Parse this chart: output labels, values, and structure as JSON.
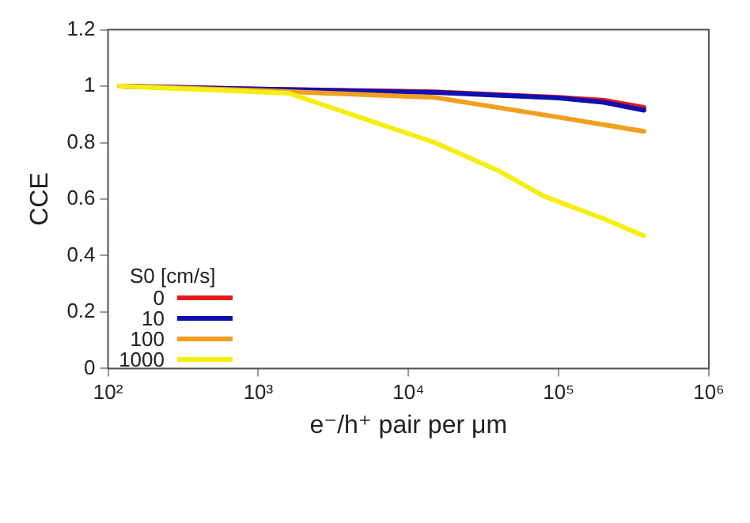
{
  "chart_data": {
    "type": "line",
    "xlabel": "e⁻/h⁺ pair per μm",
    "ylabel": "CCE",
    "legend_title": "S0 [cm/s]",
    "legend": "bottom left",
    "log": "x",
    "grid": false,
    "marker": "none",
    "line_style": "solid",
    "xlim": [
      100,
      1000000
    ],
    "xticks": [
      {
        "value": 100,
        "label": "10²"
      },
      {
        "value": 1000,
        "label": "10³"
      },
      {
        "value": 10000,
        "label": "10⁴"
      },
      {
        "value": 100000,
        "label": "10⁵"
      },
      {
        "value": 1000000,
        "label": "10⁶"
      }
    ],
    "ylim": [
      0,
      1.2
    ],
    "yticks": [
      0,
      0.2,
      0.4,
      0.6,
      0.8,
      1,
      1.2
    ],
    "series": [
      {
        "name": "0",
        "color": "#e41a1c",
        "x": [
          120,
          1000,
          15000,
          100000,
          200000,
          370000
        ],
        "values": [
          1,
          0.99,
          0.98,
          0.96,
          0.95,
          0.925
        ]
      },
      {
        "name": "10",
        "color": "#1010b0",
        "x": [
          120,
          1000,
          15000,
          100000,
          200000,
          370000
        ],
        "values": [
          1,
          0.99,
          0.978,
          0.958,
          0.943,
          0.915
        ]
      },
      {
        "name": "100",
        "color": "#f0a020",
        "x": [
          120,
          1000,
          15000,
          100000,
          370000
        ],
        "values": [
          1,
          0.985,
          0.96,
          0.89,
          0.84
        ]
      },
      {
        "name": "1000",
        "color": "#f5ee10",
        "x": [
          120,
          1600,
          15000,
          40000,
          80000,
          200000,
          370000
        ],
        "values": [
          1,
          0.975,
          0.8,
          0.7,
          0.61,
          0.53,
          0.47
        ]
      }
    ]
  }
}
